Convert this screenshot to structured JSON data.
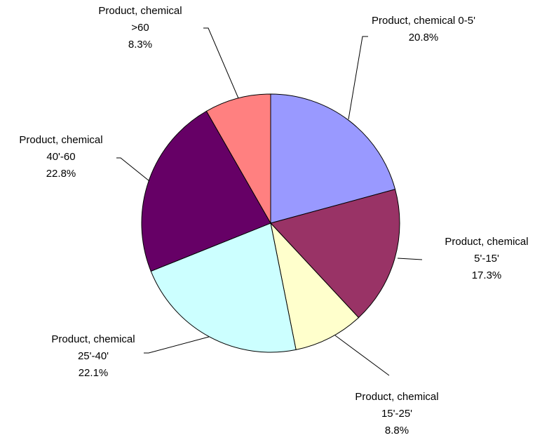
{
  "chart_data": {
    "type": "pie",
    "categories": [
      "Product, chemical 0-5'",
      "Product, chemical 5'-15'",
      "Product, chemical 15'-25'",
      "Product, chemical 25'-40'",
      "Product, chemical 40'-60",
      "Product, chemical >60"
    ],
    "values": [
      20.8,
      17.3,
      8.8,
      22.1,
      22.8,
      8.3
    ],
    "value_labels": [
      "20.8%",
      "17.3%",
      "8.8%",
      "22.1%",
      "22.8%",
      "8.3%"
    ],
    "colors": [
      "#9999ff",
      "#993366",
      "#ffffcc",
      "#ccffff",
      "#660066",
      "#ff8080"
    ]
  }
}
